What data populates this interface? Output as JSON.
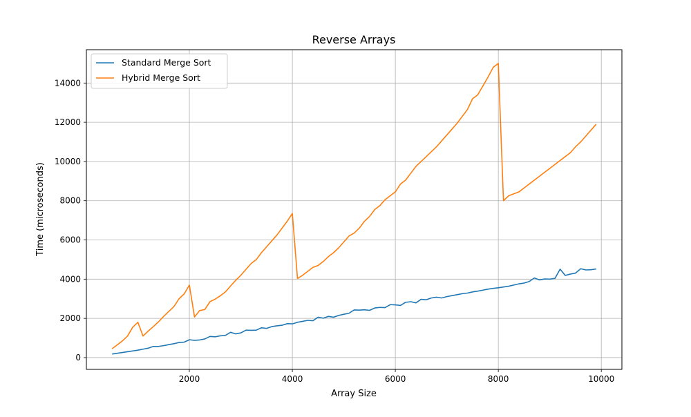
{
  "chart_data": {
    "type": "line",
    "title": "Reverse Arrays",
    "xlabel": "Array Size",
    "ylabel": "Time (microseconds)",
    "xlim": [
      0,
      10400
    ],
    "ylim": [
      -600,
      15700
    ],
    "xticks": [
      2000,
      4000,
      6000,
      8000,
      10000
    ],
    "yticks": [
      0,
      2000,
      4000,
      6000,
      8000,
      10000,
      12000,
      14000
    ],
    "grid": true,
    "legend_position": "top-left",
    "x": [
      500,
      600,
      700,
      800,
      900,
      1000,
      1100,
      1200,
      1300,
      1400,
      1500,
      1600,
      1700,
      1800,
      1900,
      2000,
      2100,
      2200,
      2300,
      2400,
      2500,
      2600,
      2700,
      2800,
      2900,
      3000,
      3100,
      3200,
      3300,
      3400,
      3500,
      3600,
      3700,
      3800,
      3900,
      4000,
      4100,
      4200,
      4300,
      4400,
      4500,
      4600,
      4700,
      4800,
      4900,
      5000,
      5100,
      5200,
      5300,
      5400,
      5500,
      5600,
      5700,
      5800,
      5900,
      6000,
      6100,
      6200,
      6300,
      6400,
      6500,
      6600,
      6700,
      6800,
      6900,
      7000,
      7100,
      7200,
      7300,
      7400,
      7500,
      7600,
      7700,
      7800,
      7900,
      8000,
      8100,
      8200,
      8300,
      8400,
      8500,
      8600,
      8700,
      8800,
      8900,
      9000,
      9100,
      9200,
      9300,
      9400,
      9500,
      9600,
      9700,
      9800,
      9900
    ],
    "series": [
      {
        "name": "Standard Merge Sort",
        "color": "#1f77b4",
        "values": [
          180,
          220,
          260,
          300,
          340,
          380,
          430,
          480,
          570,
          570,
          610,
          660,
          710,
          770,
          790,
          910,
          880,
          900,
          950,
          1080,
          1060,
          1110,
          1130,
          1290,
          1210,
          1260,
          1400,
          1390,
          1400,
          1520,
          1490,
          1580,
          1620,
          1650,
          1730,
          1720,
          1800,
          1850,
          1900,
          1880,
          2060,
          2010,
          2100,
          2060,
          2150,
          2210,
          2260,
          2430,
          2420,
          2440,
          2410,
          2530,
          2560,
          2550,
          2700,
          2690,
          2660,
          2820,
          2850,
          2790,
          2970,
          2950,
          3040,
          3080,
          3040,
          3110,
          3160,
          3210,
          3260,
          3290,
          3350,
          3390,
          3440,
          3490,
          3530,
          3560,
          3600,
          3640,
          3700,
          3760,
          3800,
          3880,
          4060,
          3960,
          4010,
          4000,
          4040,
          4510,
          4190,
          4260,
          4310,
          4530,
          4470,
          4480,
          4520
        ]
      },
      {
        "name": "Hybrid Merge Sort",
        "color": "#ff7f0e",
        "values": [
          450,
          650,
          850,
          1100,
          1550,
          1800,
          1100,
          1350,
          1580,
          1820,
          2100,
          2350,
          2600,
          3000,
          3250,
          3700,
          2070,
          2400,
          2450,
          2850,
          2980,
          3150,
          3350,
          3650,
          3940,
          4200,
          4500,
          4800,
          5000,
          5350,
          5650,
          5950,
          6250,
          6600,
          6950,
          7350,
          4030,
          4200,
          4400,
          4600,
          4700,
          4900,
          5150,
          5350,
          5600,
          5900,
          6200,
          6350,
          6600,
          6950,
          7200,
          7550,
          7750,
          8050,
          8250,
          8450,
          8850,
          9050,
          9400,
          9750,
          10000,
          10250,
          10500,
          10750,
          11050,
          11350,
          11650,
          11950,
          12300,
          12650,
          13200,
          13400,
          13850,
          14300,
          14800,
          15000,
          8000,
          8250,
          8350,
          8450,
          8650,
          8850,
          9050,
          9250,
          9450,
          9650,
          9850,
          10050,
          10250,
          10450,
          10750,
          11000,
          11300,
          11600,
          11900
        ]
      }
    ]
  }
}
